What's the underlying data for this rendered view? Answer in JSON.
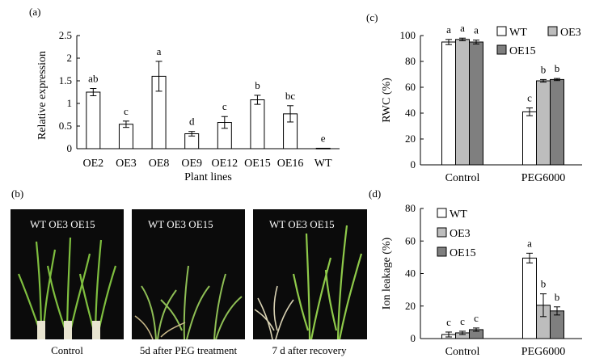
{
  "chart_data": [
    {
      "panel": "(a)",
      "type": "bar",
      "categories": [
        "OE2",
        "OE3",
        "OE8",
        "OE9",
        "OE12",
        "OE15",
        "OE16",
        "WT"
      ],
      "values": [
        1.25,
        0.54,
        1.6,
        0.33,
        0.58,
        1.08,
        0.77,
        0.01
      ],
      "errors": [
        0.08,
        0.07,
        0.33,
        0.05,
        0.13,
        0.1,
        0.18,
        0.0
      ],
      "letters": [
        "ab",
        "c",
        "a",
        "d",
        "c",
        "b",
        "bc",
        "e"
      ],
      "xlabel": "Plant lines",
      "ylabel": "Relative expression",
      "ylim": [
        0,
        2.5
      ],
      "yticks": [
        "0",
        "0.5",
        "1",
        "1.5",
        "2",
        "2.5"
      ]
    },
    {
      "panel": "(c)",
      "type": "bar",
      "categories": [
        "Control",
        "PEG6000"
      ],
      "series": [
        {
          "name": "WT",
          "color": "#ffffff",
          "values": [
            95,
            41
          ],
          "errors": [
            2,
            3
          ],
          "letters": [
            "a",
            "c"
          ]
        },
        {
          "name": "OE3",
          "color": "#bdbdbd",
          "values": [
            97,
            65
          ],
          "errors": [
            1,
            1
          ],
          "letters": [
            "a",
            "b"
          ]
        },
        {
          "name": "OE15",
          "color": "#7f7f7f",
          "values": [
            95,
            66
          ],
          "errors": [
            1.5,
            0.8
          ],
          "letters": [
            "a",
            "b"
          ]
        }
      ],
      "ylabel": "RWC (%)",
      "ylim": [
        0,
        100
      ],
      "yticks": [
        "0",
        "20",
        "40",
        "60",
        "80",
        "100"
      ],
      "legend": "top-right"
    },
    {
      "panel": "(d)",
      "type": "bar",
      "categories": [
        "Control",
        "PEG6000"
      ],
      "series": [
        {
          "name": "WT",
          "color": "#ffffff",
          "values": [
            2.5,
            49.5
          ],
          "errors": [
            1.5,
            3
          ],
          "letters": [
            "c",
            "a"
          ]
        },
        {
          "name": "OE3",
          "color": "#bdbdbd",
          "values": [
            3.5,
            20.5
          ],
          "errors": [
            1,
            7
          ],
          "letters": [
            "c",
            "b"
          ]
        },
        {
          "name": "OE15",
          "color": "#7f7f7f",
          "values": [
            5.5,
            17
          ],
          "errors": [
            1,
            2.5
          ],
          "letters": [
            "c",
            "b"
          ]
        }
      ],
      "ylabel": "Ion leakage (%)",
      "ylim": [
        0,
        80
      ],
      "yticks": [
        "0",
        "20",
        "40",
        "60",
        "80"
      ],
      "legend": "top-left"
    }
  ],
  "photos": {
    "panel": "(b)",
    "items": [
      {
        "label": "WT OE3 OE15",
        "caption": "Control"
      },
      {
        "label": "WT OE3 OE15",
        "caption": "5d after PEG treatment"
      },
      {
        "label": "WT  OE3 OE15",
        "caption": "7 d after recovery"
      }
    ]
  }
}
